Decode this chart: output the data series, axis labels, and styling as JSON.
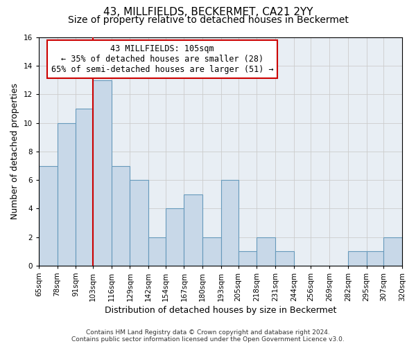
{
  "title": "43, MILLFIELDS, BECKERMET, CA21 2YY",
  "subtitle": "Size of property relative to detached houses in Beckermet",
  "xlabel": "Distribution of detached houses by size in Beckermet",
  "ylabel": "Number of detached properties",
  "tick_labels": [
    "65sqm",
    "78sqm",
    "91sqm",
    "103sqm",
    "116sqm",
    "129sqm",
    "142sqm",
    "154sqm",
    "167sqm",
    "180sqm",
    "193sqm",
    "205sqm",
    "218sqm",
    "231sqm",
    "244sqm",
    "256sqm",
    "269sqm",
    "282sqm",
    "295sqm",
    "307sqm",
    "320sqm"
  ],
  "bin_edges": [
    65,
    78,
    91,
    103,
    116,
    129,
    142,
    154,
    167,
    180,
    193,
    205,
    218,
    231,
    244,
    256,
    269,
    282,
    295,
    307,
    320
  ],
  "values": [
    7,
    10,
    11,
    13,
    7,
    6,
    2,
    4,
    5,
    2,
    6,
    1,
    2,
    1,
    0,
    0,
    0,
    1,
    1,
    2
  ],
  "bar_color": "#c8d8e8",
  "bar_edge_color": "#6699bb",
  "vline_x": 103,
  "vline_color": "#cc0000",
  "annotation_line1": "43 MILLFIELDS: 105sqm",
  "annotation_line2": "← 35% of detached houses are smaller (28)",
  "annotation_line3": "65% of semi-detached houses are larger (51) →",
  "annotation_box_color": "#ffffff",
  "annotation_box_edge": "#cc0000",
  "ylim": [
    0,
    16
  ],
  "yticks": [
    0,
    2,
    4,
    6,
    8,
    10,
    12,
    14,
    16
  ],
  "grid_color": "#cccccc",
  "bg_color": "#e8eef4",
  "footer_line1": "Contains HM Land Registry data © Crown copyright and database right 2024.",
  "footer_line2": "Contains public sector information licensed under the Open Government Licence v3.0.",
  "title_fontsize": 11,
  "subtitle_fontsize": 10,
  "axis_label_fontsize": 9,
  "tick_fontsize": 7.5,
  "annot_fontsize": 8.5
}
